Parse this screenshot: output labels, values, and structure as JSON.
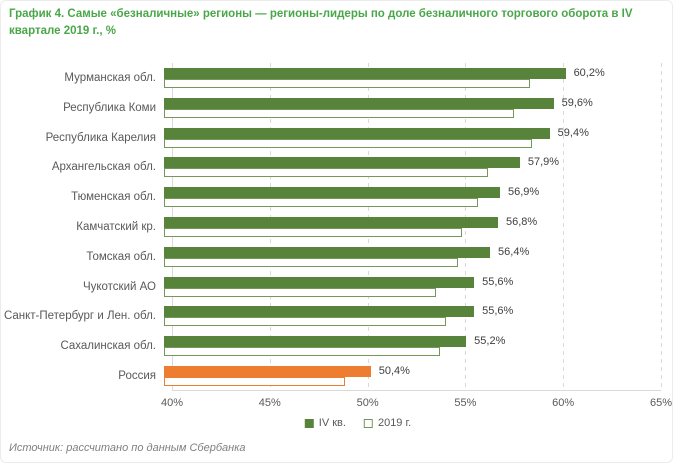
{
  "figure": {
    "title": "График 4. Самые «безналичные» регионы — регионы-лидеры по доле безналичного торгового оборота в IV квартале 2019 г., %",
    "source": "Источник: рассчитано по данным Сбербанка"
  },
  "colors": {
    "title_green": "#49a749",
    "bar_green": "#57833b",
    "bar_green_border": "#76975a",
    "bar_orange": "#ed7d31",
    "gridline": "#d9d9d9",
    "axis_text": "#595959",
    "value_text": "#3f3f3f"
  },
  "chart_data": {
    "type": "bar",
    "orientation": "horizontal",
    "title": "График 4. Самые «безналичные» регионы — регионы-лидеры по доле безналичного торгового оборота в IV квартале 2019 г., %",
    "categories": [
      "Мурманская обл.",
      "Республика Коми",
      "Республика Карелия",
      "Архангельская обл.",
      "Тюменская обл.",
      "Камчатский кр.",
      "Томская обл.",
      "Чукотский АО",
      "Санкт-Петербург и Лен. обл.",
      "Сахалинская обл.",
      "Россия"
    ],
    "series": [
      {
        "name": "IV кв.",
        "style": "solid",
        "values": [
          60.2,
          59.6,
          59.4,
          57.9,
          56.9,
          56.8,
          56.4,
          55.6,
          55.6,
          55.2,
          50.4
        ]
      },
      {
        "name": "2019 г.",
        "style": "outline",
        "values": [
          58.4,
          57.6,
          58.5,
          56.3,
          55.8,
          55.0,
          54.8,
          53.7,
          54.2,
          53.9,
          49.1
        ]
      }
    ],
    "data_labels": [
      "60,2%",
      "59,6%",
      "59,4%",
      "57,9%",
      "56,9%",
      "56,8%",
      "56,4%",
      "55,6%",
      "55,6%",
      "55,2%",
      "50,4%"
    ],
    "xlim": [
      40,
      65
    ],
    "xticks": [
      "40%",
      "45%",
      "50%",
      "55%",
      "60%",
      "65%"
    ],
    "grid": "vertical-dashed",
    "legend_position": "bottom",
    "highlight_index": 10
  }
}
